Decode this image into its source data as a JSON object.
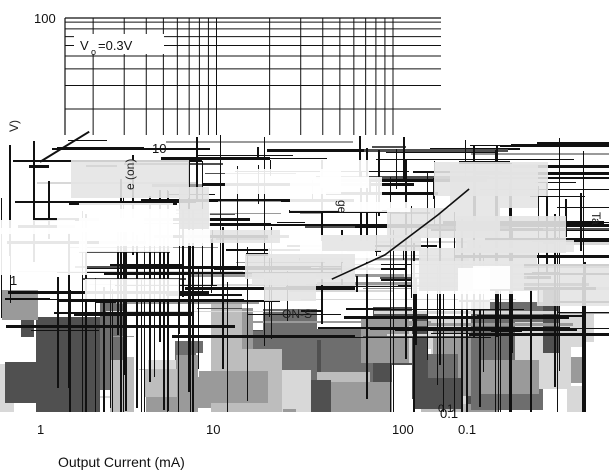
{
  "chart_data": {
    "type": "line",
    "title": "",
    "condition_label": "V",
    "condition_subscript": "o",
    "condition_value": "=0.3V",
    "xlabel": "Output Current (mA)",
    "xscale": "log",
    "xlim": [
      0.8,
      900
    ],
    "x_ticks": [
      "1",
      "10",
      "100"
    ],
    "y_ticks": [
      "100",
      "10",
      "1",
      "0.1"
    ],
    "ylabel_fragment_left": "V)",
    "ylabel_fragment_inner": "e (on)",
    "right_axis_fragment": "0.1",
    "right_axis_fragment_2": "0.1",
    "text_fragments": [
      "ge",
      "Ta",
      "ON-S"
    ],
    "series": [
      {
        "x": [
          1,
          1.9
        ],
        "y": [
          8,
          13.5
        ]
      },
      {
        "x": [
          45,
          90,
          180,
          270
        ],
        "y": [
          1.05,
          1.6,
          3.2,
          5.0
        ]
      }
    ]
  },
  "colors": {
    "grid": "#111111",
    "curve": "#111111",
    "background": "#ffffff",
    "noise_dark": "#505050",
    "noise_mid": "#9a9a9a",
    "noise_light": "#d8d8d8"
  }
}
